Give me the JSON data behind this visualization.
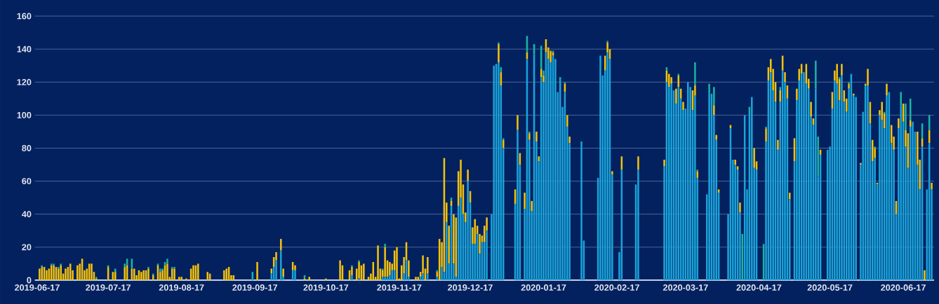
{
  "chart_data": {
    "type": "bar",
    "stacked": true,
    "grid": "y",
    "xlim": [
      "2019-06-16",
      "2020-06-30"
    ],
    "ylim": [
      0,
      160
    ],
    "xticks": [
      "2019-06-17",
      "2019-07-17",
      "2019-08-17",
      "2019-09-17",
      "2019-10-17",
      "2019-11-17",
      "2019-12-17",
      "2020-01-17",
      "2020-02-17",
      "2020-03-17",
      "2020-04-17",
      "2020-05-17",
      "2020-06-17"
    ],
    "yticks": [
      0,
      20,
      40,
      60,
      80,
      100,
      120,
      140,
      160
    ],
    "x": [
      "2019-06-18",
      "2019-06-19",
      "2019-06-20",
      "2019-06-21",
      "2019-06-22",
      "2019-06-23",
      "2019-06-24",
      "2019-06-25",
      "2019-06-26",
      "2019-06-27",
      "2019-06-28",
      "2019-06-29",
      "2019-06-30",
      "2019-07-01",
      "2019-07-02",
      "2019-07-04",
      "2019-07-05",
      "2019-07-06",
      "2019-07-07",
      "2019-07-08",
      "2019-07-09",
      "2019-07-10",
      "2019-07-11",
      "2019-07-12",
      "2019-07-17",
      "2019-07-19",
      "2019-07-20",
      "2019-07-24",
      "2019-07-25",
      "2019-07-27",
      "2019-07-28",
      "2019-07-29",
      "2019-07-30",
      "2019-07-31",
      "2019-08-01",
      "2019-08-02",
      "2019-08-03",
      "2019-08-05",
      "2019-08-07",
      "2019-08-08",
      "2019-08-09",
      "2019-08-10",
      "2019-08-11",
      "2019-08-12",
      "2019-08-13",
      "2019-08-14",
      "2019-08-16",
      "2019-08-17",
      "2019-08-19",
      "2019-08-21",
      "2019-08-22",
      "2019-08-23",
      "2019-08-24",
      "2019-08-28",
      "2019-08-29",
      "2019-09-04",
      "2019-09-05",
      "2019-09-06",
      "2019-09-07",
      "2019-09-08",
      "2019-09-16",
      "2019-09-18",
      "2019-09-24",
      "2019-09-25",
      "2019-09-26",
      "2019-09-28",
      "2019-09-29",
      "2019-10-03",
      "2019-10-04",
      "2019-10-08",
      "2019-10-10",
      "2019-10-17",
      "2019-10-23",
      "2019-10-24",
      "2019-10-27",
      "2019-10-28",
      "2019-10-30",
      "2019-10-31",
      "2019-11-01",
      "2019-11-02",
      "2019-11-04",
      "2019-11-05",
      "2019-11-06",
      "2019-11-07",
      "2019-11-08",
      "2019-11-09",
      "2019-11-10",
      "2019-11-11",
      "2019-11-12",
      "2019-11-13",
      "2019-11-14",
      "2019-11-15",
      "2019-11-16",
      "2019-11-17",
      "2019-11-18",
      "2019-11-19",
      "2019-11-20",
      "2019-11-21",
      "2019-11-24",
      "2019-11-25",
      "2019-11-26",
      "2019-11-27",
      "2019-11-28",
      "2019-11-29",
      "2019-12-03",
      "2019-12-04",
      "2019-12-05",
      "2019-12-06",
      "2019-12-07",
      "2019-12-08",
      "2019-12-09",
      "2019-12-10",
      "2019-12-11",
      "2019-12-12",
      "2019-12-13",
      "2019-12-14",
      "2019-12-15",
      "2019-12-16",
      "2019-12-17",
      "2019-12-18",
      "2019-12-19",
      "2019-12-20",
      "2019-12-21",
      "2019-12-22",
      "2019-12-23",
      "2019-12-24",
      "2019-12-26",
      "2019-12-27",
      "2019-12-28",
      "2019-12-29",
      "2019-12-30",
      "2019-12-31",
      "2020-01-05",
      "2020-01-06",
      "2020-01-07",
      "2020-01-09",
      "2020-01-10",
      "2020-01-11",
      "2020-01-12",
      "2020-01-13",
      "2020-01-14",
      "2020-01-15",
      "2020-01-16",
      "2020-01-17",
      "2020-01-18",
      "2020-01-19",
      "2020-01-20",
      "2020-01-21",
      "2020-01-22",
      "2020-01-23",
      "2020-01-24",
      "2020-01-25",
      "2020-01-26",
      "2020-01-27",
      "2020-01-28",
      "2020-02-02",
      "2020-02-03",
      "2020-02-09",
      "2020-02-10",
      "2020-02-11",
      "2020-02-12",
      "2020-02-13",
      "2020-02-14",
      "2020-02-15",
      "2020-02-18",
      "2020-02-19",
      "2020-02-25",
      "2020-02-26",
      "2020-03-08",
      "2020-03-09",
      "2020-03-10",
      "2020-03-11",
      "2020-03-12",
      "2020-03-13",
      "2020-03-14",
      "2020-03-15",
      "2020-03-16",
      "2020-03-17",
      "2020-03-18",
      "2020-03-19",
      "2020-03-20",
      "2020-03-21",
      "2020-03-22",
      "2020-03-26",
      "2020-03-27",
      "2020-03-28",
      "2020-03-29",
      "2020-03-30",
      "2020-03-31",
      "2020-04-04",
      "2020-04-05",
      "2020-04-06",
      "2020-04-07",
      "2020-04-08",
      "2020-04-09",
      "2020-04-10",
      "2020-04-11",
      "2020-04-12",
      "2020-04-13",
      "2020-04-14",
      "2020-04-15",
      "2020-04-16",
      "2020-04-19",
      "2020-04-20",
      "2020-04-21",
      "2020-04-22",
      "2020-04-23",
      "2020-04-24",
      "2020-04-25",
      "2020-04-26",
      "2020-04-27",
      "2020-04-28",
      "2020-04-29",
      "2020-04-30",
      "2020-05-02",
      "2020-05-03",
      "2020-05-04",
      "2020-05-05",
      "2020-05-06",
      "2020-05-07",
      "2020-05-08",
      "2020-05-09",
      "2020-05-10",
      "2020-05-11",
      "2020-05-12",
      "2020-05-13",
      "2020-05-16",
      "2020-05-17",
      "2020-05-18",
      "2020-05-19",
      "2020-05-20",
      "2020-05-21",
      "2020-05-22",
      "2020-05-23",
      "2020-05-24",
      "2020-05-25",
      "2020-05-26",
      "2020-05-27",
      "2020-05-28",
      "2020-05-30",
      "2020-05-31",
      "2020-06-01",
      "2020-06-02",
      "2020-06-03",
      "2020-06-04",
      "2020-06-05",
      "2020-06-06",
      "2020-06-07",
      "2020-06-08",
      "2020-06-09",
      "2020-06-10",
      "2020-06-11",
      "2020-06-12",
      "2020-06-13",
      "2020-06-14",
      "2020-06-15",
      "2020-06-16",
      "2020-06-17",
      "2020-06-18",
      "2020-06-19",
      "2020-06-20",
      "2020-06-21",
      "2020-06-22",
      "2020-06-23",
      "2020-06-24",
      "2020-06-25",
      "2020-06-26",
      "2020-06-27",
      "2020-06-28",
      "2020-06-29"
    ],
    "series": [
      {
        "color": "#1aa3d9",
        "values": [
          null,
          null,
          null,
          null,
          null,
          null,
          null,
          null,
          null,
          null,
          null,
          null,
          null,
          null,
          null,
          null,
          null,
          null,
          null,
          null,
          null,
          null,
          null,
          null,
          null,
          null,
          null,
          null,
          null,
          null,
          null,
          null,
          null,
          null,
          null,
          null,
          null,
          null,
          null,
          null,
          null,
          null,
          null,
          null,
          null,
          null,
          null,
          null,
          null,
          null,
          null,
          null,
          null,
          null,
          null,
          null,
          null,
          null,
          null,
          null,
          null,
          null,
          4,
          8,
          12,
          18,
          2,
          6,
          6,
          null,
          null,
          null,
          null,
          null,
          null,
          3,
          null,
          1,
          null,
          null,
          null,
          null,
          null,
          null,
          null,
          null,
          2,
          2,
          2,
          3,
          6,
          6,
          null,
          null,
          null,
          4,
          12,
          2,
          null,
          null,
          2,
          4,
          null,
          4,
          2,
          null,
          8,
          5,
          35,
          10,
          45,
          10,
          2,
          45,
          50,
          40,
          35,
          60,
          47,
          22,
          22,
          28,
          16,
          23,
          23,
          30,
          40,
          130,
          131,
          132,
          118,
          80,
          46,
          91,
          70,
          43,
          134,
          85,
          42,
          137,
          84,
          72,
          123,
          120,
          138,
          134,
          132,
          136,
          134,
          114,
          121,
          105,
          114,
          93,
          83,
          84,
          24,
          62,
          136,
          124,
          127,
          138,
          134,
          64,
          17,
          67,
          58,
          67,
          69,
          120,
          117,
          119,
          115,
          107,
          117,
          110,
          103,
          104,
          120,
          117,
          103,
          112,
          62,
          52,
          113,
          113,
          100,
          85,
          53,
          40,
          92,
          73,
          70,
          67,
          41,
          null,
          100,
          55,
          101,
          111,
          68,
          67,
          null,
          84,
          121,
          126,
          115,
          108,
          79,
          108,
          127,
          120,
          110,
          49,
          72,
          109,
          121,
          125,
          126,
          119,
          116,
          99,
          94,
          116,
          63,
          76,
          79,
          81,
          104,
          121,
          119,
          109,
          124,
          108,
          102,
          116,
          125,
          112,
          111,
          70,
          102,
          118,
          118,
          95,
          72,
          74,
          58,
          100,
          97,
          92,
          112,
          114,
          83,
          79,
          40,
          92,
          106,
          96,
          81,
          68,
          93,
          96,
          90,
          70,
          55,
          81,
          null,
          55,
          83,
          55
        ]
      },
      {
        "color": "#f4c20d",
        "values": [
          7,
          8,
          8,
          6,
          7,
          9,
          9,
          8,
          7,
          9,
          4,
          7,
          8,
          10,
          6,
          9,
          10,
          13,
          6,
          7,
          10,
          10,
          5,
          1,
          8,
          5,
          5,
          8,
          9,
          7,
          7,
          3,
          6,
          5,
          6,
          6,
          7,
          3,
          9,
          5,
          6,
          9,
          10,
          2,
          7,
          7,
          2,
          2,
          1,
          7,
          9,
          9,
          10,
          5,
          4,
          6,
          7,
          8,
          3,
          3,
          null,
          11,
          3,
          6,
          5,
          7,
          5,
          5,
          3,
          1,
          2,
          1,
          12,
          9,
          6,
          5,
          7,
          10,
          9,
          10,
          2,
          4,
          11,
          2,
          21,
          7,
          4,
          18,
          10,
          8,
          4,
          12,
          20,
          1,
          9,
          10,
          11,
          10,
          2,
          2,
          3,
          11,
          7,
          10,
          3,
          25,
          15,
          69,
          12,
          23,
          3,
          30,
          36,
          21,
          23,
          18,
          6,
          7,
          7,
          10,
          15,
          5,
          12,
          4,
          10,
          8,
          null,
          null,
          null,
          11,
          8,
          5,
          9,
          9,
          7,
          10,
          4,
          4,
          6,
          null,
          6,
          3,
          5,
          4,
          8,
          7,
          7,
          2,
          null,
          null,
          null,
          null,
          5,
          7,
          4,
          null,
          null,
          null,
          null,
          null,
          9,
          6,
          6,
          2,
          null,
          8,
          null,
          8,
          4,
          7,
          8,
          4,
          null,
          9,
          7,
          6,
          5,
          null,
          null,
          null,
          12,
          6,
          4,
          null,
          null,
          null,
          6,
          3,
          2,
          null,
          2,
          null,
          3,
          2,
          6,
          null,
          null,
          null,
          null,
          null,
          12,
          5,
          null,
          8,
          8,
          8,
          13,
          12,
          6,
          7,
          9,
          6,
          8,
          4,
          14,
          7,
          7,
          6,
          null,
          12,
          6,
          9,
          4,
          null,
          null,
          3,
          null,
          null,
          10,
          6,
          12,
          13,
          7,
          7,
          8,
          3,
          null,
          1,
          null,
          1,
          null,
          1,
          10,
          13,
          13,
          6,
          1,
          3,
          11,
          9,
          7,
          null,
          11,
          8,
          8,
          6,
          null,
          11,
          10,
          21,
          4,
          null,
          null,
          20,
          18,
          5,
          6,
          null,
          8,
          4
        ]
      },
      {
        "color": "#19b4a4",
        "values": [
          null,
          1,
          null,
          null,
          null,
          1,
          1,
          null,
          1,
          1,
          null,
          null,
          null,
          null,
          null,
          null,
          null,
          null,
          null,
          null,
          null,
          null,
          null,
          1,
          1,
          null,
          2,
          2,
          4,
          6,
          null,
          null,
          null,
          null,
          null,
          null,
          1,
          1,
          1,
          2,
          1,
          2,
          3,
          null,
          1,
          1,
          null,
          null,
          null,
          null,
          null,
          null,
          null,
          null,
          null,
          null,
          null,
          null,
          null,
          null,
          5,
          null,
          null,
          null,
          null,
          null,
          null,
          null,
          null,
          2,
          null,
          null,
          null,
          null,
          null,
          1,
          null,
          1,
          null,
          null,
          null,
          null,
          null,
          null,
          null,
          null,
          1,
          2,
          null,
          null,
          null,
          null,
          null,
          null,
          null,
          null,
          null,
          null,
          null,
          null,
          null,
          null,
          null,
          null,
          1,
          null,
          null,
          null,
          null,
          null,
          2,
          null,
          null,
          null,
          null,
          null,
          null,
          null,
          null,
          null,
          null,
          null,
          null,
          null,
          null,
          null,
          null,
          null,
          null,
          1,
          3,
          1,
          null,
          null,
          null,
          null,
          10,
          1,
          null,
          6,
          null,
          null,
          14,
          3,
          null,
          null,
          null,
          1,
          null,
          null,
          2,
          null,
          1,
          null,
          null,
          null,
          null,
          null,
          null,
          null,
          null,
          1,
          null,
          null,
          null,
          null,
          null,
          null,
          null,
          2,
          null,
          null,
          null,
          null,
          1,
          null,
          null,
          null,
          null,
          null,
          null,
          14,
          1,
          null,
          6,
          null,
          11,
          null,
          null,
          null,
          null,
          null,
          null,
          null,
          null,
          28,
          null,
          null,
          4,
          null,
          null,
          null,
          22,
          1,
          null,
          null,
          null,
          null,
          null,
          2,
          null,
          null,
          null,
          null,
          null,
          null,
          null,
          null,
          null,
          null,
          null,
          null,
          null,
          17,
          24,
          null,
          null,
          null,
          null,
          null,
          null,
          1,
          null,
          null,
          null,
          1,
          null,
          null,
          null,
          null,
          null,
          null,
          null,
          null,
          null,
          1,
          null,
          null,
          null,
          1,
          null,
          null,
          null,
          null,
          null,
          null,
          8,
          null,
          16,
          null,
          13,
          null,
          null,
          null,
          null,
          9,
          null,
          null,
          9,
          null
        ]
      }
    ]
  }
}
